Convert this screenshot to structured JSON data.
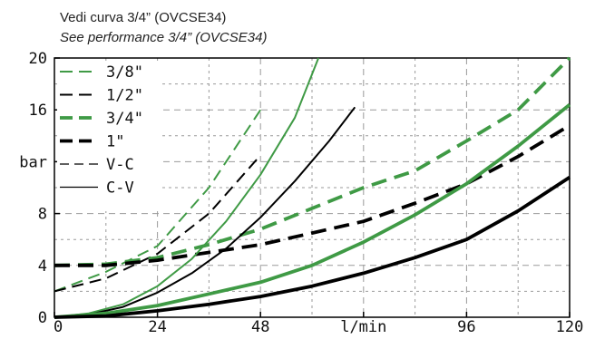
{
  "notes": {
    "line1": "Vedi curva 3/4” (OVCSE34)",
    "line2": "See performance 3/4” (OVCSE34)"
  },
  "chart_data": {
    "type": "line",
    "xlabel": "l/min",
    "ylabel": "bar",
    "xlim": [
      0,
      120
    ],
    "ylim": [
      0,
      20
    ],
    "x_ticks": [
      "0",
      "24",
      "48",
      "l/min",
      "96",
      "120"
    ],
    "x_tick_values": [
      0,
      24,
      48,
      72,
      96,
      120
    ],
    "y_ticks": [
      "0",
      "4",
      "8",
      "bar",
      "16",
      "20"
    ],
    "y_tick_values": [
      0,
      4,
      8,
      12,
      16,
      20
    ],
    "grid": true,
    "legend_position": "top-left",
    "colors": {
      "green": "#3f9a45",
      "black": "#000000",
      "grid": "#9a9a9a"
    },
    "legend": [
      {
        "label": "3/8\"",
        "color": "#3f9a45",
        "style": "dashed",
        "weight": "thin"
      },
      {
        "label": "1/2\"",
        "color": "#000000",
        "style": "dashed",
        "weight": "thin"
      },
      {
        "label": "3/4\"",
        "color": "#3f9a45",
        "style": "dashed",
        "weight": "thick"
      },
      {
        "label": "1\"",
        "color": "#000000",
        "style": "dashed",
        "weight": "thick"
      },
      {
        "label": "V-C",
        "color": "#000000",
        "style": "dashed",
        "weight": "hair"
      },
      {
        "label": "C-V",
        "color": "#000000",
        "style": "solid",
        "weight": "hair"
      }
    ],
    "series": [
      {
        "name": "3/8\"",
        "direction": "V-C",
        "color": "#3f9a45",
        "style": "dashed",
        "weight": "thin",
        "x": [
          0,
          12,
          24,
          36,
          48
        ],
        "y": [
          2.0,
          3.5,
          5.5,
          10.0,
          16.0
        ]
      },
      {
        "name": "1/2\"",
        "direction": "V-C",
        "color": "#000000",
        "style": "dashed",
        "weight": "thin",
        "x": [
          0,
          12,
          24,
          36,
          48
        ],
        "y": [
          2.0,
          3.0,
          4.9,
          8.0,
          12.5
        ]
      },
      {
        "name": "3/4\"",
        "direction": "V-C",
        "color": "#3f9a45",
        "style": "dashed",
        "weight": "thick",
        "x": [
          0,
          12,
          24,
          36,
          48,
          60,
          72,
          84,
          96,
          108,
          120
        ],
        "y": [
          4.0,
          4.1,
          4.6,
          5.6,
          6.8,
          8.4,
          10.0,
          11.3,
          13.6,
          16.0,
          20.0
        ]
      },
      {
        "name": "1\"",
        "direction": "V-C",
        "color": "#000000",
        "style": "dashed",
        "weight": "thick",
        "x": [
          0,
          12,
          24,
          36,
          48,
          60,
          72,
          84,
          96,
          108,
          120
        ],
        "y": [
          4.0,
          4.0,
          4.4,
          5.0,
          5.6,
          6.5,
          7.4,
          8.8,
          10.3,
          12.4,
          14.8
        ]
      },
      {
        "name": "3/8\"",
        "direction": "C-V",
        "color": "#3f9a45",
        "style": "solid",
        "weight": "thin",
        "x": [
          0,
          8,
          16,
          24,
          32,
          40,
          48,
          56,
          61.5
        ],
        "y": [
          0.0,
          0.3,
          1.0,
          2.4,
          4.5,
          7.4,
          11.0,
          15.4,
          20.0
        ]
      },
      {
        "name": "1/2\"",
        "direction": "C-V",
        "color": "#000000",
        "style": "solid",
        "weight": "thin",
        "x": [
          0,
          8,
          16,
          24,
          32,
          40,
          48,
          56,
          64,
          70
        ],
        "y": [
          0.0,
          0.2,
          0.8,
          1.9,
          3.4,
          5.3,
          7.7,
          10.5,
          13.6,
          16.2
        ]
      },
      {
        "name": "3/4\"",
        "direction": "C-V",
        "color": "#3f9a45",
        "style": "solid",
        "weight": "thick",
        "x": [
          0,
          12,
          24,
          36,
          48,
          60,
          72,
          84,
          96,
          108,
          120
        ],
        "y": [
          0.0,
          0.3,
          0.9,
          1.8,
          2.7,
          4.0,
          5.8,
          7.9,
          10.3,
          13.2,
          16.4
        ]
      },
      {
        "name": "1\"",
        "direction": "C-V",
        "color": "#000000",
        "style": "solid",
        "weight": "thick",
        "x": [
          0,
          12,
          24,
          36,
          48,
          60,
          72,
          84,
          96,
          108,
          120
        ],
        "y": [
          0.0,
          0.1,
          0.5,
          1.0,
          1.6,
          2.4,
          3.4,
          4.6,
          6.0,
          8.2,
          10.8
        ]
      }
    ]
  }
}
